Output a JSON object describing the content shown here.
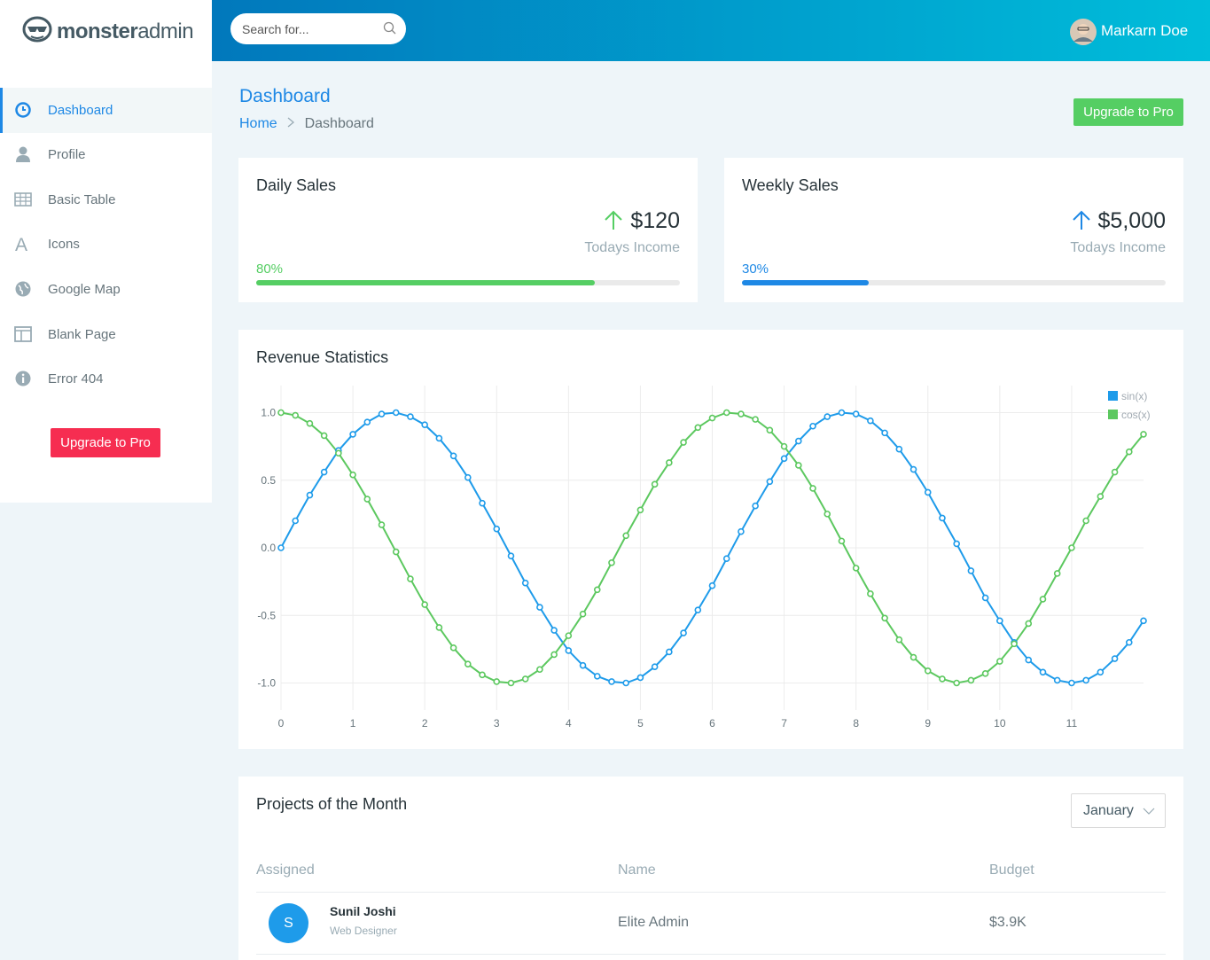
{
  "logo": {
    "bold": "monster",
    "light": "admin"
  },
  "header": {
    "search_placeholder": "Search for...",
    "user": "Markarn Doe"
  },
  "sidebar": {
    "items": [
      "Dashboard",
      "Profile",
      "Basic Table",
      "Icons",
      "Google Map",
      "Blank Page",
      "Error 404"
    ],
    "button": "Upgrade to Pro"
  },
  "page": {
    "title": "Dashboard",
    "breadcrumb": [
      "Home",
      "Dashboard"
    ],
    "button": "Upgrade to Pro"
  },
  "cards": [
    {
      "title": "Daily Sales",
      "amount": "$120",
      "caption": "Todays Income",
      "progress": {
        "value": 80,
        "label": "80%"
      },
      "color": "#55ce63"
    },
    {
      "title": "Weekly Sales",
      "amount": "$5,000",
      "caption": "Todays Income",
      "progress": {
        "value": 30,
        "label": "30%"
      },
      "color": "#1e88e5"
    }
  ],
  "chart_data": {
    "type": "line",
    "title": "Revenue Statistics",
    "x": [
      0,
      0.2,
      0.4,
      0.6,
      0.8,
      1,
      1.2,
      1.4,
      1.6,
      1.8,
      2,
      2.2,
      2.4,
      2.6,
      2.8,
      3,
      3.2,
      3.4,
      3.6,
      3.8,
      4,
      4.2,
      4.4,
      4.6,
      4.8,
      5,
      5.2,
      5.4,
      5.6,
      5.8,
      6,
      6.2,
      6.4,
      6.6,
      6.8,
      7,
      7.2,
      7.4,
      7.6,
      7.8,
      8,
      8.2,
      8.4,
      8.6,
      8.8,
      9,
      9.2,
      9.4,
      9.6,
      9.8,
      10,
      10.2,
      10.4,
      10.6,
      10.8,
      11,
      11.2,
      11.4,
      11.6,
      11.8,
      12
    ],
    "series": [
      {
        "name": "sin(x)",
        "color": "#1e9bea",
        "values": [
          0,
          0.2,
          0.39,
          0.56,
          0.72,
          0.84,
          0.93,
          0.99,
          1,
          0.97,
          0.91,
          0.81,
          0.68,
          0.52,
          0.33,
          0.14,
          -0.06,
          -0.26,
          -0.44,
          -0.61,
          -0.76,
          -0.87,
          -0.95,
          -0.99,
          -1,
          -0.96,
          -0.88,
          -0.77,
          -0.63,
          -0.46,
          -0.28,
          -0.08,
          0.12,
          0.31,
          0.49,
          0.66,
          0.79,
          0.9,
          0.97,
          1,
          0.99,
          0.94,
          0.85,
          0.73,
          0.58,
          0.41,
          0.22,
          0.03,
          -0.17,
          -0.37,
          -0.54,
          -0.7,
          -0.83,
          -0.92,
          -0.98,
          -1,
          -0.98,
          -0.92,
          -0.82,
          -0.7,
          -0.54
        ]
      },
      {
        "name": "cos(x)",
        "color": "#5cc85f",
        "values": [
          1,
          0.98,
          0.92,
          0.83,
          0.7,
          0.54,
          0.36,
          0.17,
          -0.03,
          -0.23,
          -0.42,
          -0.59,
          -0.74,
          -0.86,
          -0.94,
          -0.99,
          -1,
          -0.97,
          -0.9,
          -0.79,
          -0.65,
          -0.49,
          -0.31,
          -0.11,
          0.09,
          0.28,
          0.47,
          0.63,
          0.78,
          0.89,
          0.96,
          1,
          0.99,
          0.95,
          0.87,
          0.75,
          0.61,
          0.44,
          0.25,
          0.05,
          -0.15,
          -0.34,
          -0.52,
          -0.68,
          -0.81,
          -0.91,
          -0.97,
          -1,
          -0.98,
          -0.93,
          -0.84,
          -0.71,
          -0.56,
          -0.38,
          -0.19,
          0,
          0.2,
          0.38,
          0.56,
          0.71,
          0.84
        ]
      }
    ],
    "xlim": [
      0,
      12
    ],
    "xticks": [
      0,
      1,
      2,
      3,
      4,
      5,
      6,
      7,
      8,
      9,
      10,
      11
    ],
    "ylim": [
      -1.2,
      1.2
    ],
    "yticks": [
      {
        "value": -1,
        "label": "-1.0"
      },
      {
        "value": -0.5,
        "label": "-0.5"
      },
      {
        "value": 0,
        "label": "0.0"
      },
      {
        "value": 0.5,
        "label": "0.5"
      },
      {
        "value": 1,
        "label": "1.0"
      }
    ],
    "grid": true,
    "legend": "top-right"
  },
  "projects": {
    "title": "Projects of the Month",
    "month": "January",
    "columns": [
      "Assigned",
      "Name",
      "Budget"
    ],
    "rows": [
      {
        "initial": "S",
        "person": "Sunil Joshi",
        "role": "Web Designer",
        "name": "Elite Admin",
        "budget": "$3.9K"
      }
    ]
  }
}
